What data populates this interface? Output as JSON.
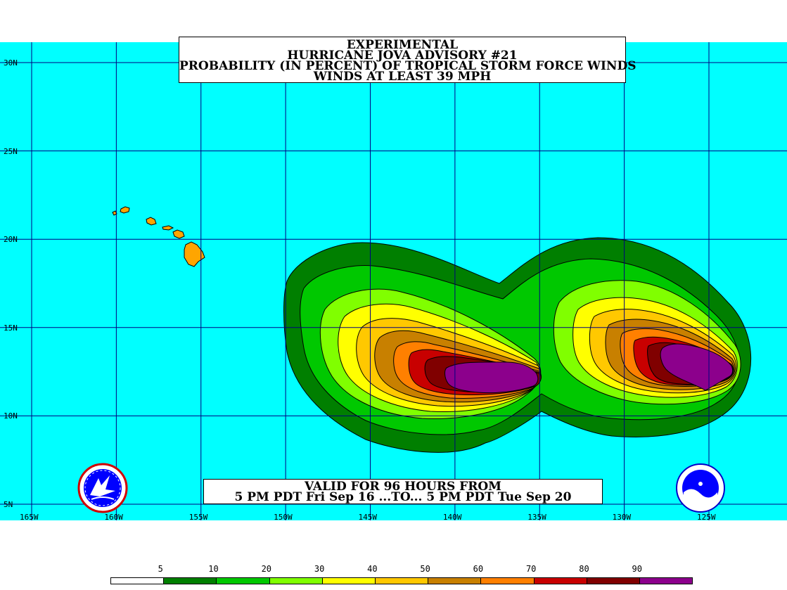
{
  "title": {
    "line1": "EXPERIMENTAL",
    "line2": "HURRICANE JOVA ADVISORY #21",
    "line3": "PROBABILITY (IN PERCENT) OF TROPICAL STORM FORCE WINDS",
    "line4": "WINDS AT LEAST 39 MPH"
  },
  "valid": {
    "line1": "VALID FOR 96 HOURS FROM",
    "line2": "5 PM PDT Fri Sep 16 ...TO... 5 PM PDT Tue Sep 20"
  },
  "axes": {
    "lat_labels": [
      "30N",
      "25N",
      "20N",
      "15N",
      "10N",
      "5N"
    ],
    "lon_labels": [
      "165W",
      "160W",
      "155W",
      "150W",
      "145W",
      "140W",
      "135W",
      "130W",
      "125W"
    ],
    "lat_values": [
      30,
      25,
      20,
      15,
      10,
      5
    ],
    "lon_values": [
      -165,
      -160,
      -155,
      -150,
      -145,
      -140,
      -135,
      -130,
      -125
    ]
  },
  "legend": {
    "labels": [
      "5",
      "10",
      "20",
      "30",
      "40",
      "50",
      "60",
      "70",
      "80",
      "90"
    ],
    "colors": [
      "#ffffff",
      "#007f00",
      "#00c800",
      "#80ff00",
      "#ffff00",
      "#ffc800",
      "#c88000",
      "#ff8000",
      "#c80000",
      "#800000",
      "#8c008c"
    ]
  },
  "colors": {
    "ocean": "#00ffff",
    "land": "#ffa500",
    "grid": "#000080"
  },
  "icons": {
    "nws": "nws-logo-icon",
    "noaa": "noaa-logo-icon"
  }
}
